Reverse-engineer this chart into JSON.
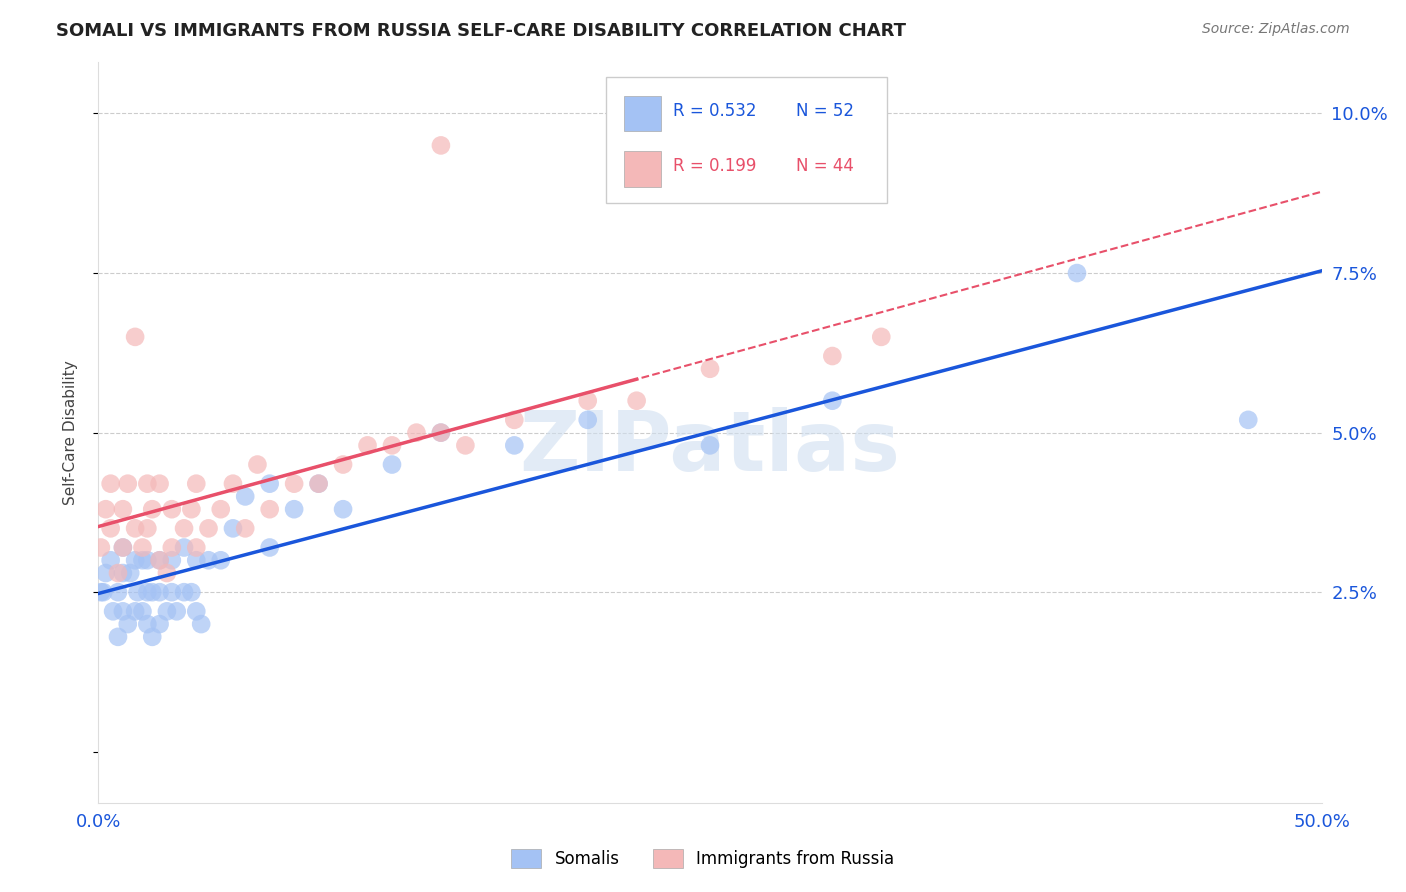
{
  "title": "SOMALI VS IMMIGRANTS FROM RUSSIA SELF-CARE DISABILITY CORRELATION CHART",
  "source": "Source: ZipAtlas.com",
  "ylabel": "Self-Care Disability",
  "xlim": [
    0.0,
    0.5
  ],
  "ylim": [
    -0.008,
    0.108
  ],
  "x_ticks": [
    0.0,
    0.1,
    0.2,
    0.3,
    0.4,
    0.5
  ],
  "x_tick_labels": [
    "0.0%",
    "",
    "",
    "",
    "",
    "50.0%"
  ],
  "y_ticks": [
    0.0,
    0.025,
    0.05,
    0.075,
    0.1
  ],
  "y_tick_labels": [
    "",
    "2.5%",
    "5.0%",
    "7.5%",
    "10.0%"
  ],
  "somali_R": 0.532,
  "somali_N": 52,
  "russia_R": 0.199,
  "russia_N": 44,
  "blue_color": "#a4c2f4",
  "pink_color": "#f4b8b8",
  "blue_line_color": "#1a56db",
  "pink_line_color": "#e8506a",
  "watermark_text": "ZIPatlas",
  "somali_x": [
    0.001,
    0.002,
    0.003,
    0.005,
    0.006,
    0.008,
    0.008,
    0.01,
    0.01,
    0.01,
    0.012,
    0.013,
    0.015,
    0.015,
    0.016,
    0.018,
    0.018,
    0.02,
    0.02,
    0.02,
    0.022,
    0.022,
    0.025,
    0.025,
    0.025,
    0.028,
    0.03,
    0.03,
    0.032,
    0.035,
    0.035,
    0.038,
    0.04,
    0.04,
    0.042,
    0.045,
    0.05,
    0.055,
    0.06,
    0.07,
    0.07,
    0.08,
    0.09,
    0.1,
    0.12,
    0.14,
    0.17,
    0.2,
    0.25,
    0.3,
    0.4,
    0.47
  ],
  "somali_y": [
    0.025,
    0.025,
    0.028,
    0.03,
    0.022,
    0.025,
    0.018,
    0.022,
    0.028,
    0.032,
    0.02,
    0.028,
    0.022,
    0.03,
    0.025,
    0.022,
    0.03,
    0.02,
    0.025,
    0.03,
    0.018,
    0.025,
    0.02,
    0.025,
    0.03,
    0.022,
    0.025,
    0.03,
    0.022,
    0.025,
    0.032,
    0.025,
    0.022,
    0.03,
    0.02,
    0.03,
    0.03,
    0.035,
    0.04,
    0.032,
    0.042,
    0.038,
    0.042,
    0.038,
    0.045,
    0.05,
    0.048,
    0.052,
    0.048,
    0.055,
    0.075,
    0.052
  ],
  "russia_x": [
    0.001,
    0.003,
    0.005,
    0.005,
    0.008,
    0.01,
    0.01,
    0.012,
    0.015,
    0.015,
    0.018,
    0.02,
    0.02,
    0.022,
    0.025,
    0.025,
    0.028,
    0.03,
    0.03,
    0.035,
    0.038,
    0.04,
    0.04,
    0.045,
    0.05,
    0.055,
    0.06,
    0.065,
    0.07,
    0.08,
    0.09,
    0.1,
    0.11,
    0.12,
    0.13,
    0.14,
    0.15,
    0.17,
    0.2,
    0.22,
    0.14,
    0.25,
    0.3,
    0.32
  ],
  "russia_y": [
    0.032,
    0.038,
    0.042,
    0.035,
    0.028,
    0.032,
    0.038,
    0.042,
    0.065,
    0.035,
    0.032,
    0.035,
    0.042,
    0.038,
    0.03,
    0.042,
    0.028,
    0.032,
    0.038,
    0.035,
    0.038,
    0.032,
    0.042,
    0.035,
    0.038,
    0.042,
    0.035,
    0.045,
    0.038,
    0.042,
    0.042,
    0.045,
    0.048,
    0.048,
    0.05,
    0.05,
    0.048,
    0.052,
    0.055,
    0.055,
    0.095,
    0.06,
    0.062,
    0.065
  ]
}
